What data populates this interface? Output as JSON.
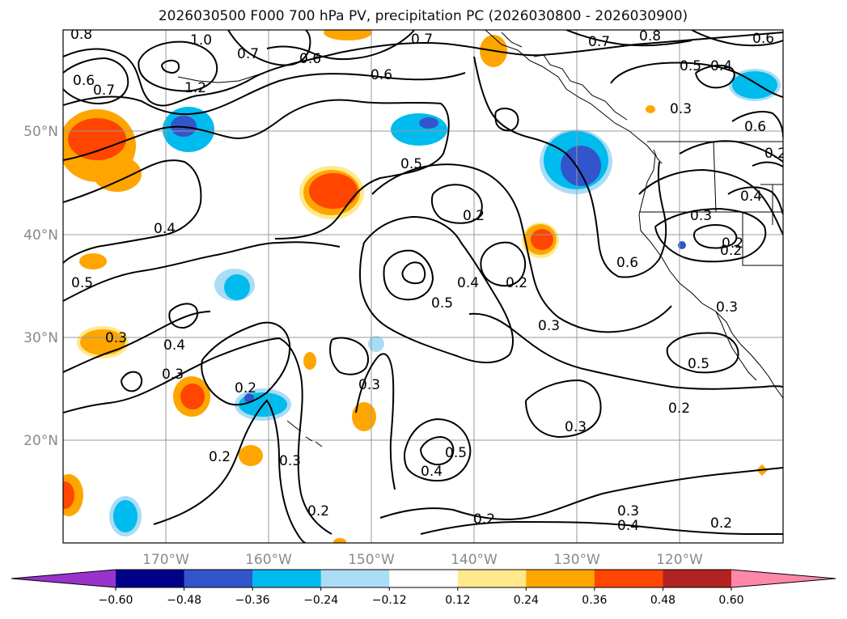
{
  "title": "2026030500 F000 700 hPa PV, precipitation PC (2026030800 - 2026030900)",
  "lat_labels": [
    "50°N",
    "40°N",
    "30°N",
    "20°N"
  ],
  "lon_labels": [
    "170°W",
    "160°W",
    "150°W",
    "140°W",
    "130°W",
    "120°W"
  ],
  "colorbar": {
    "ticks": [
      "−0.60",
      "−0.48",
      "−0.36",
      "−0.24",
      "−0.12",
      "0.12",
      "0.24",
      "0.36",
      "0.48",
      "0.60"
    ],
    "colors": [
      "#9933cc",
      "#000088",
      "#3355cc",
      "#00bbee",
      "#aaddf5",
      "#ffffff",
      "#ffe98a",
      "#ffa500",
      "#ff4500",
      "#b22222",
      "#ff88aa"
    ]
  },
  "contour_labels": [
    "0.8",
    "1.0",
    "0.7",
    "0.7",
    "0.6",
    "0.6",
    "0.7",
    "0.8",
    "0.6",
    "0.7",
    "1.2",
    "0.6",
    "0.5",
    "0.4",
    "0.3",
    "0.6",
    "0.5",
    "0.4",
    "0.2",
    "0.4",
    "0.3",
    "0.5",
    "0.6",
    "0.2",
    "0.2",
    "0.5",
    "0.4",
    "0.2",
    "0.3",
    "0.3",
    "0.4",
    "0.3",
    "0.3",
    "0.5",
    "0.2",
    "0.3",
    "0.2",
    "0.3",
    "0.4",
    "0.5",
    "0.2",
    "0.3",
    "0.2",
    "0.2",
    "0.2",
    "0.3",
    "0.4",
    "0.2"
  ]
}
